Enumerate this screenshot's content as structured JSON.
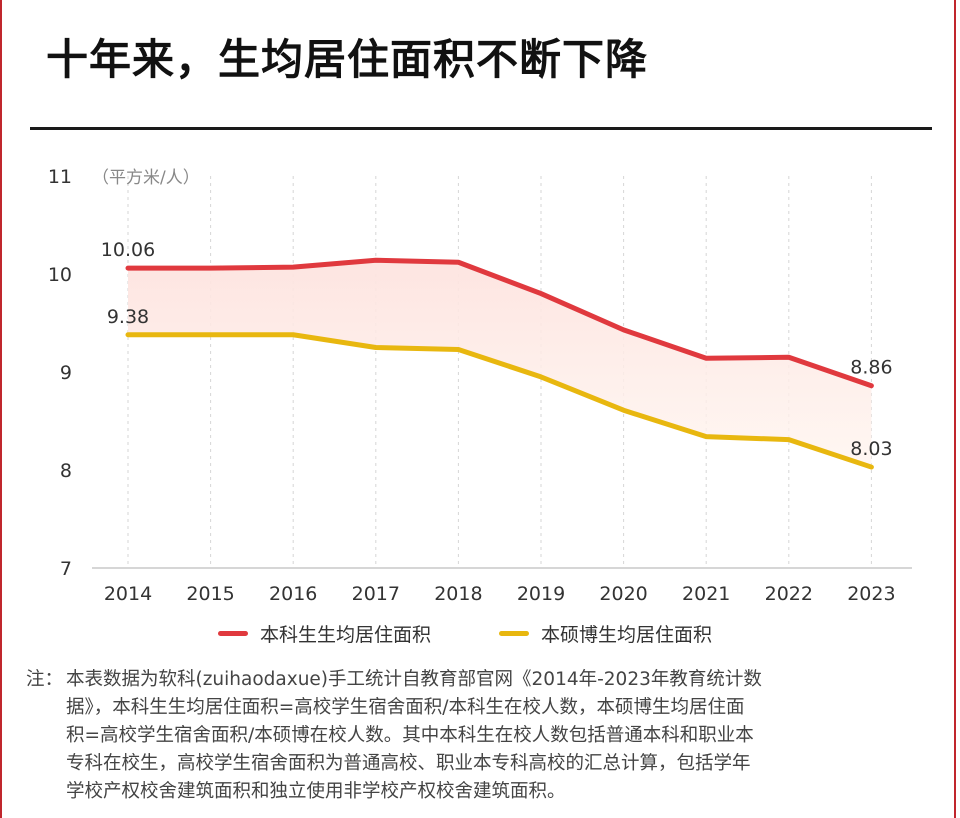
{
  "title": "十年来，生均居住面积不断下降",
  "colors": {
    "undergrad": "#e0393e",
    "grad": "#e8b70f",
    "band_fill": "#fde9e6",
    "frame": "#c0262d"
  },
  "chart_data": {
    "type": "line",
    "ylabel": "（平方米/人）",
    "categories": [
      "2014",
      "2015",
      "2016",
      "2017",
      "2018",
      "2019",
      "2020",
      "2021",
      "2022",
      "2023"
    ],
    "y_ticks": [
      "11",
      "10",
      "9",
      "8",
      "7"
    ],
    "ylim": [
      7,
      11
    ],
    "grid": "vertical-dashed",
    "legend_position": "bottom",
    "series": [
      {
        "name": "本科生生均居住面积",
        "color": "#e0393e",
        "values": [
          10.06,
          10.06,
          10.07,
          10.14,
          10.12,
          9.8,
          9.43,
          9.14,
          9.15,
          8.86
        ],
        "labels": {
          "0": "10.06",
          "9": "8.86"
        }
      },
      {
        "name": "本硕博生均居住面积",
        "color": "#e8b70f",
        "values": [
          9.38,
          9.38,
          9.38,
          9.25,
          9.23,
          8.95,
          8.61,
          8.34,
          8.31,
          8.03
        ],
        "labels": {
          "0": "9.38",
          "9": "8.03"
        }
      }
    ]
  },
  "note": {
    "prefix": "注：",
    "lines": [
      "本表数据为软科(zuihaodaxue)手工统计自教育部官网《2014年-2023年教育统计数",
      "据》，本科生生均居住面积=高校学生宿舍面积/本科生在校人数，本硕博生均居住面",
      "积=高校学生宿舍面积/本硕博在校人数。其中本科生在校人数包括普通本科和职业本",
      "专科在校生，高校学生宿舍面积为普通高校、职业本专科高校的汇总计算，包括学年",
      "学校产权校舍建筑面积和独立使用非学校产权校舍建筑面积。"
    ]
  }
}
